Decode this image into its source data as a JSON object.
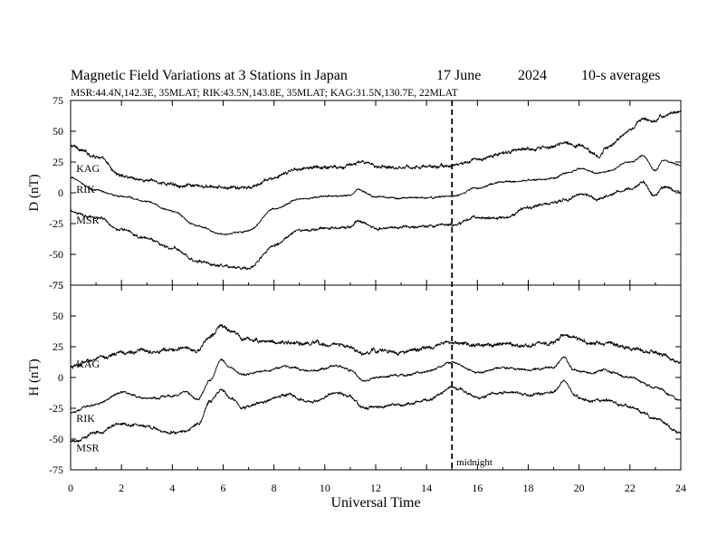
{
  "header": {
    "title": "Magnetic Field Variations at 3 Stations in Japan",
    "date": "17 June",
    "year": "2024",
    "averaging": "10-s averages",
    "stations_line": "MSR:44.4N,142.3E, 35MLAT;  RIK:43.5N,143.8E, 35MLAT;  KAG:31.5N,130.7E, 22MLAT"
  },
  "chart_data": [
    {
      "type": "line",
      "panel": "D",
      "ylabel": "D (nT)",
      "ylim": [
        -75,
        75
      ],
      "yticks": [
        75,
        50,
        25,
        0,
        -25,
        -50,
        -75
      ],
      "xlim": [
        0,
        24
      ],
      "xticks": [
        0,
        2,
        4,
        6,
        8,
        10,
        12,
        14,
        16,
        18,
        20,
        22,
        24
      ],
      "x": [
        0,
        1,
        2,
        3,
        4,
        5,
        6,
        7,
        8,
        9,
        10,
        11,
        11.3,
        12,
        13,
        14,
        15,
        16,
        17,
        18,
        19,
        19.5,
        20,
        20.8,
        21,
        22,
        22.5,
        23,
        23.3,
        24
      ],
      "series": [
        {
          "name": "KAG",
          "color": "#000000",
          "noise": 1.6,
          "values": [
            38,
            30,
            14,
            10,
            7,
            5,
            4,
            4,
            12,
            20,
            21,
            22,
            25,
            22,
            21,
            21,
            22,
            27,
            32,
            36,
            38,
            40,
            38,
            30,
            36,
            50,
            60,
            58,
            63,
            66
          ]
        },
        {
          "name": "RIK",
          "color": "#000000",
          "noise": 0.8,
          "values": [
            12,
            2,
            -3,
            -7,
            -15,
            -27,
            -34,
            -31,
            -13,
            -5,
            -3,
            -2,
            3,
            -3,
            -4,
            -4,
            -3,
            4,
            9,
            10,
            12,
            16,
            20,
            16,
            17,
            25,
            30,
            18,
            26,
            23
          ]
        },
        {
          "name": "MSR",
          "color": "#000000",
          "noise": 1.3,
          "values": [
            -15,
            -20,
            -30,
            -37,
            -45,
            -56,
            -60,
            -61,
            -43,
            -31,
            -29,
            -28,
            -22,
            -29,
            -28,
            -28,
            -26,
            -20,
            -21,
            -12,
            -8,
            -6,
            -1,
            -5,
            -3,
            3,
            8,
            -2,
            5,
            0
          ]
        }
      ],
      "labels": [
        {
          "text": "KAG",
          "x": 0.15,
          "y": 20
        },
        {
          "text": "RIK",
          "x": 0.15,
          "y": 3
        },
        {
          "text": "MSR",
          "x": 0.15,
          "y": -22
        }
      ]
    },
    {
      "type": "line",
      "panel": "H",
      "ylabel": "H (nT)",
      "ylim": [
        -75,
        75
      ],
      "yticks": [
        75,
        50,
        25,
        0,
        -25,
        -50,
        -75
      ],
      "xlim": [
        0,
        24
      ],
      "xticks": [
        0,
        2,
        4,
        6,
        8,
        10,
        12,
        14,
        16,
        18,
        20,
        22,
        24
      ],
      "xlabel": "Universal Time",
      "x": [
        0,
        1,
        2,
        3,
        4,
        4.5,
        5,
        5.5,
        5.9,
        6.3,
        6.8,
        7.5,
        8.5,
        9.5,
        10.5,
        11,
        11.5,
        12,
        13,
        14,
        15,
        16,
        17,
        18,
        19,
        19.4,
        19.8,
        20.5,
        21,
        22,
        23,
        24
      ],
      "series": [
        {
          "name": "KAG",
          "color": "#000000",
          "noise": 1.8,
          "values": [
            8,
            15,
            20,
            22,
            22,
            24,
            22,
            33,
            42,
            38,
            31,
            30,
            28,
            27,
            27,
            24,
            19,
            22,
            20,
            24,
            28,
            26,
            28,
            26,
            29,
            35,
            32,
            27,
            28,
            24,
            20,
            12
          ]
        },
        {
          "name": "RIK",
          "color": "#000000",
          "noise": 1.0,
          "values": [
            -28,
            -22,
            -12,
            -17,
            -15,
            -12,
            -18,
            -2,
            14,
            8,
            2,
            5,
            9,
            5,
            10,
            6,
            -2,
            0,
            2,
            5,
            12,
            4,
            8,
            6,
            8,
            16,
            6,
            3,
            6,
            0,
            -8,
            -18
          ]
        },
        {
          "name": "MSR",
          "color": "#000000",
          "noise": 1.4,
          "values": [
            -52,
            -45,
            -38,
            -40,
            -45,
            -43,
            -38,
            -20,
            -10,
            -18,
            -25,
            -20,
            -14,
            -20,
            -12,
            -16,
            -25,
            -24,
            -22,
            -18,
            -8,
            -16,
            -12,
            -14,
            -12,
            -3,
            -14,
            -20,
            -18,
            -24,
            -33,
            -45
          ]
        }
      ],
      "labels": [
        {
          "text": "KAG",
          "x": 0.15,
          "y": 11
        },
        {
          "text": "RIK",
          "x": 0.15,
          "y": -33
        },
        {
          "text": "MSR",
          "x": 0.15,
          "y": -57
        }
      ]
    }
  ],
  "marker": {
    "x": 15,
    "label": "midnight"
  }
}
